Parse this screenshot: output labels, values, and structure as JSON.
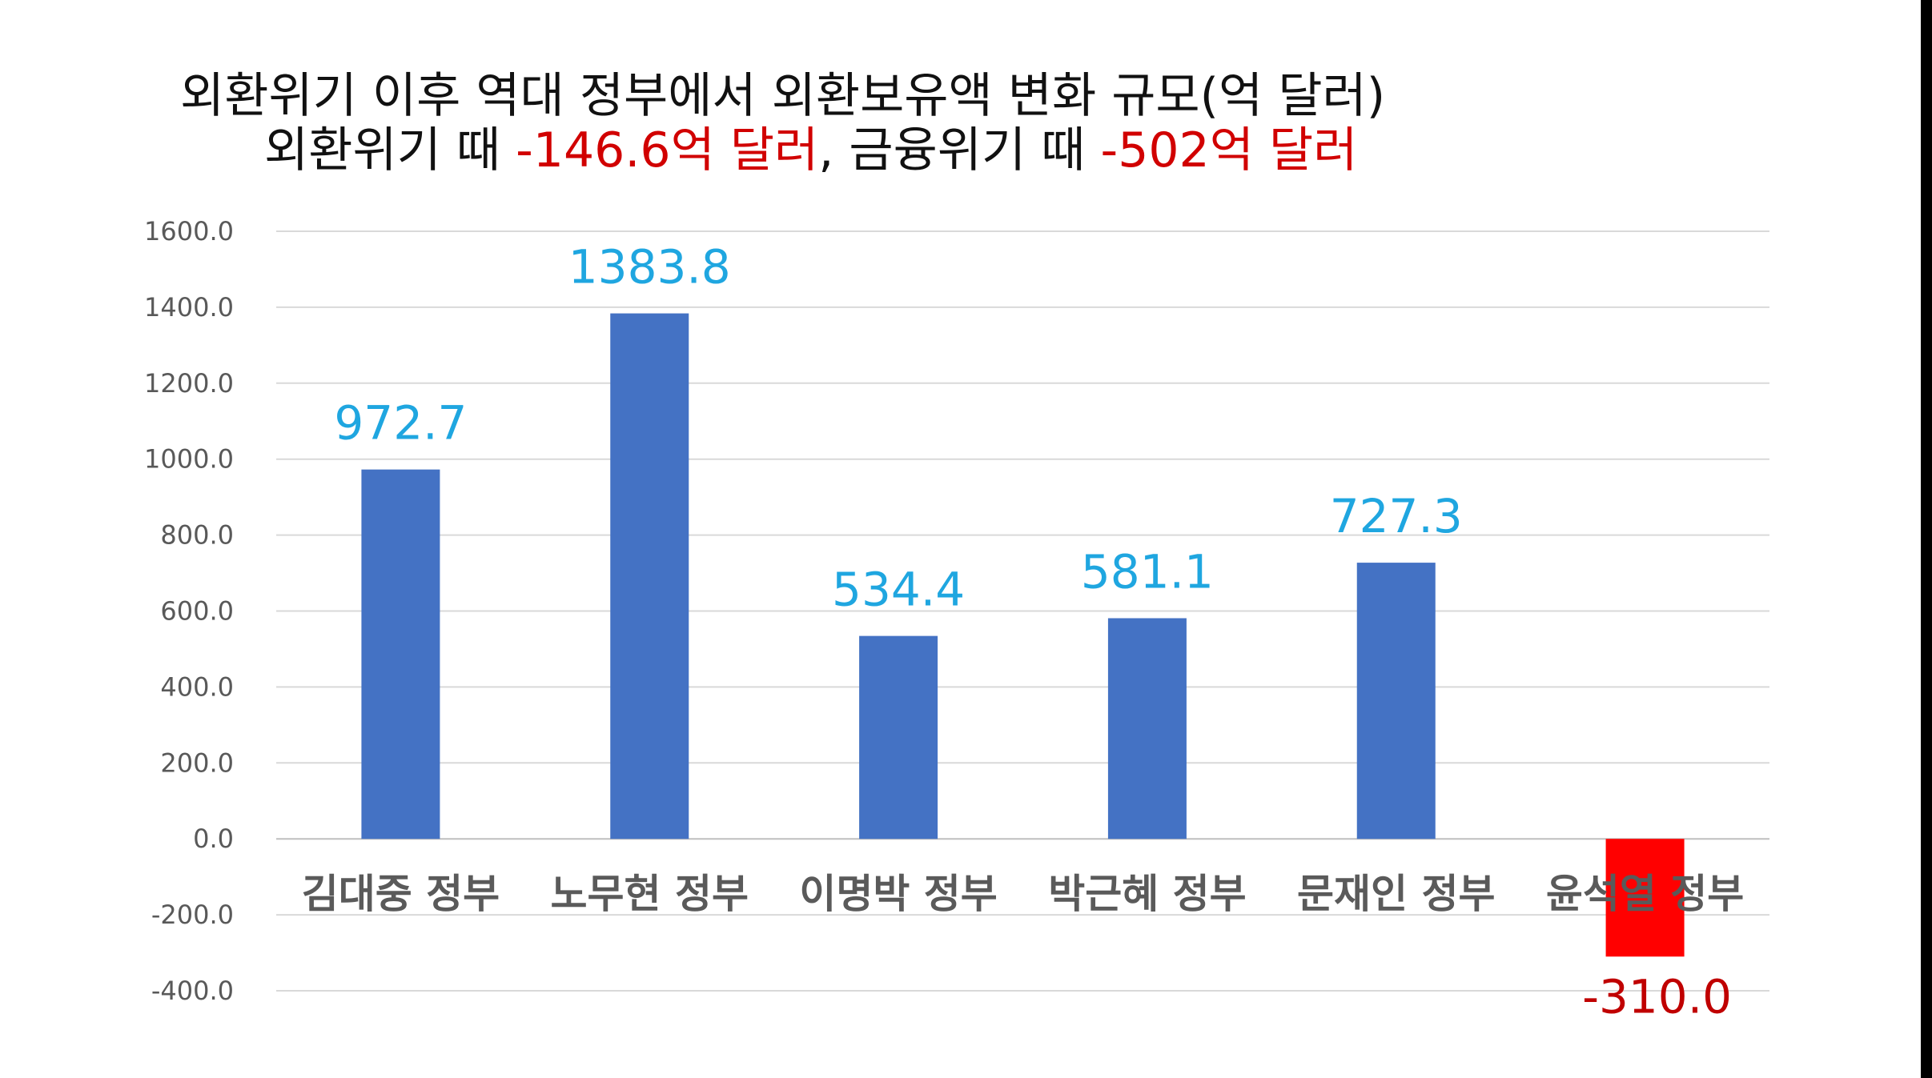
{
  "title": {
    "line1": "외환위기 이후 역대 정부에서 외환보유액 변화 규모(억 달러)",
    "line2_prefix": "외환위기 때 ",
    "line2_value1": "-146.6억 달러",
    "line2_mid": ", 금융위기 때 ",
    "line2_value2": "-502억 달러"
  },
  "colors": {
    "positive_bar": "#4472c4",
    "negative_bar": "#ff0000",
    "data_label_positive": "#1fa6e0",
    "data_label_negative": "#c00000",
    "title_highlight": "#d10000"
  },
  "chart_data": {
    "type": "bar",
    "title": "외환위기 이후 역대 정부에서 외환보유액 변화 규모(억 달러)",
    "subtitle": "외환위기 때 -146.6억 달러, 금융위기 때 -502억 달러",
    "categories": [
      "김대중 정부",
      "노무현 정부",
      "이명박 정부",
      "박근혜 정부",
      "문재인 정부",
      "윤석열 정부"
    ],
    "values": [
      972.7,
      1383.8,
      534.4,
      581.1,
      727.3,
      -310.0
    ],
    "data_labels": [
      "972.7",
      "1383.8",
      "534.4",
      "581.1",
      "727.3",
      "-310.0"
    ],
    "ylim": [
      -400,
      1600
    ],
    "yticks": [
      1600,
      1400,
      1200,
      1000,
      800,
      600,
      400,
      200,
      0,
      -200,
      -400
    ],
    "ytick_labels": [
      "1600.0",
      "1400.0",
      "1200.0",
      "1000.0",
      "800.0",
      "600.0",
      "400.0",
      "200.0",
      "0.0",
      "-200.0",
      "-400.0"
    ],
    "xlabel": "",
    "ylabel": "",
    "grid": true,
    "legend": "none"
  }
}
